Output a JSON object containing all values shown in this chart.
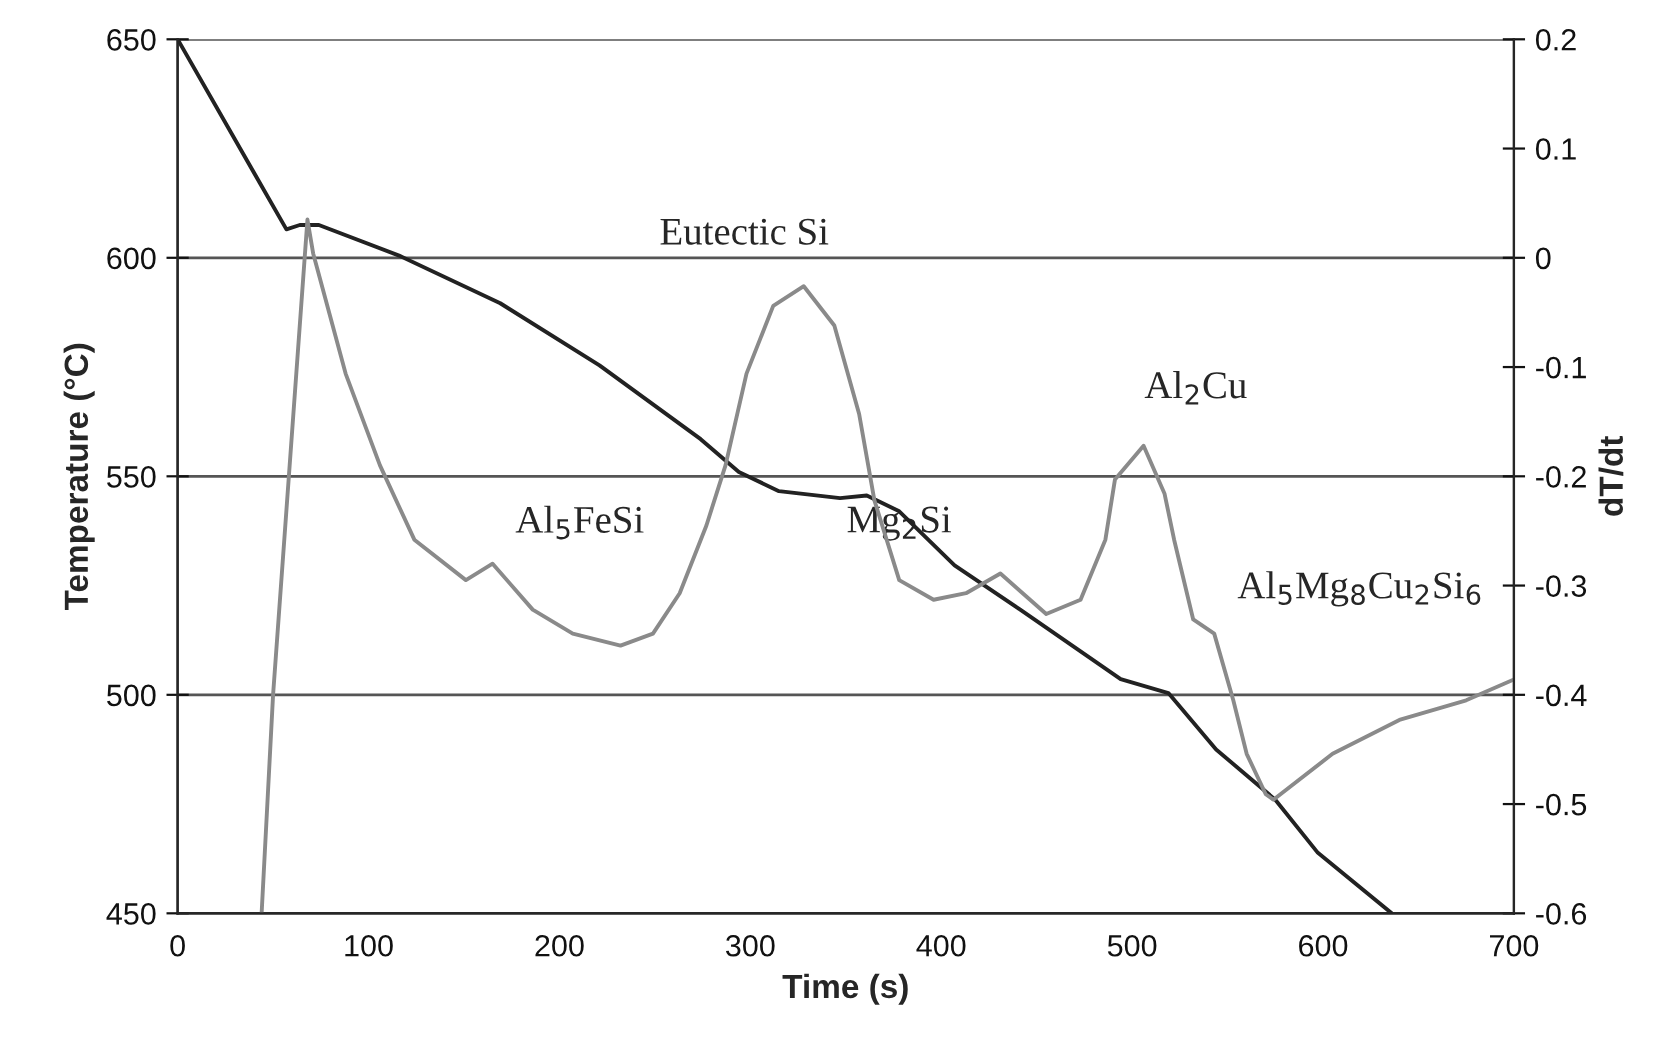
{
  "chart_data": {
    "type": "line",
    "xlabel": "Time (s)",
    "ylabel": "Temperature (°C)",
    "y2label": "dT/dt",
    "xlim": [
      0,
      700
    ],
    "xticks": [
      0,
      100,
      200,
      300,
      400,
      500,
      600,
      700
    ],
    "ylim": [
      450,
      650
    ],
    "yticks": [
      450,
      500,
      550,
      600,
      650
    ],
    "y2lim": [
      -0.6,
      0.2
    ],
    "y2ticks": [
      -0.6,
      -0.5,
      -0.4,
      -0.3,
      -0.2,
      -0.1,
      0,
      0.1,
      0.2
    ],
    "grid": "y",
    "legend": false,
    "series": [
      {
        "color": "#222222",
        "x": [
          0,
          57,
          64,
          74,
          116,
          169,
          221,
          274,
          294,
          315,
          347,
          361,
          378,
          407,
          441,
          494,
          519,
          544,
          575,
          597,
          636
        ],
        "values": [
          650,
          606.5,
          607.5,
          607.5,
          600.5,
          589.6,
          575.4,
          558.5,
          551,
          546.6,
          545,
          545.6,
          542,
          529.6,
          519.6,
          503.6,
          500.4,
          487.5,
          476,
          464,
          450
        ]
      },
      {
        "color": "#8a8a8a",
        "axis": "y2",
        "x": [
          44,
          50,
          68,
          71,
          88,
          106,
          124,
          151,
          165,
          186,
          207,
          232,
          249,
          263,
          277,
          287,
          298,
          312,
          328,
          344,
          357,
          365,
          378,
          396,
          413,
          431,
          455,
          473,
          486,
          491,
          506,
          517,
          522,
          532,
          543,
          553,
          560,
          570,
          574,
          605,
          640,
          675,
          700
        ],
        "values": [
          -0.6,
          -0.4,
          0.035,
          0.004,
          -0.106,
          -0.19,
          -0.258,
          -0.295,
          -0.28,
          -0.322,
          -0.344,
          -0.355,
          -0.344,
          -0.307,
          -0.245,
          -0.19,
          -0.106,
          -0.044,
          -0.026,
          -0.062,
          -0.143,
          -0.222,
          -0.295,
          -0.313,
          -0.307,
          -0.289,
          -0.326,
          -0.313,
          -0.258,
          -0.203,
          -0.172,
          -0.216,
          -0.258,
          -0.331,
          -0.344,
          -0.405,
          -0.454,
          -0.491,
          -0.496,
          -0.454,
          -0.423,
          -0.405,
          -0.386
        ]
      }
    ],
    "annotations": [
      "Eutectic Si",
      "Al$_{5}$FeSi",
      "Mg$_{2}$Si",
      "Al$_{2}$Cu",
      "Al$_{5}$Mg$_{8}$Cu$_{2}$Si$_{6}$"
    ]
  }
}
